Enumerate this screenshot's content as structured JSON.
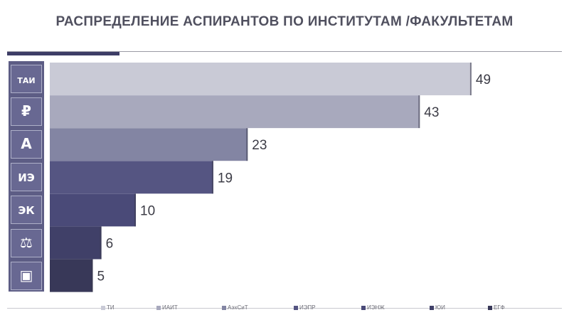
{
  "header": {
    "title": "РАСПРЕДЕЛЕНИЕ АСПИРАНТОВ ПО ИНСТИТУТАМ /ФАКУЛЬТЕТАМ"
  },
  "chart_data": {
    "type": "bar",
    "orientation": "horizontal",
    "categories": [
      "ТИ",
      "ИАИТ",
      "АэхСиТ",
      "ИЭПР",
      "ИЭНЖ",
      "ЮИ",
      "ЕГФ"
    ],
    "values": [
      49,
      43,
      23,
      19,
      10,
      6,
      5
    ],
    "colors": [
      "#c9cad6",
      "#a8a9bd",
      "#8385a3",
      "#555582",
      "#4a4a78",
      "#404068",
      "#383858"
    ],
    "xlim": [
      0,
      50
    ],
    "data_labels": true,
    "grid": false,
    "legend": "bottom"
  },
  "icons": [
    {
      "name": "tai-logo-icon",
      "glyph": "ТАИ"
    },
    {
      "name": "shield-ruble-icon",
      "glyph": "₽"
    },
    {
      "name": "architecture-column-icon",
      "glyph": "А"
    },
    {
      "name": "iepr-logo-icon",
      "glyph": "ИЭ"
    },
    {
      "name": "ek-logo-icon",
      "glyph": "ЭК"
    },
    {
      "name": "scales-justice-icon",
      "glyph": "⚖"
    },
    {
      "name": "box-cube-icon",
      "glyph": "▣"
    }
  ]
}
